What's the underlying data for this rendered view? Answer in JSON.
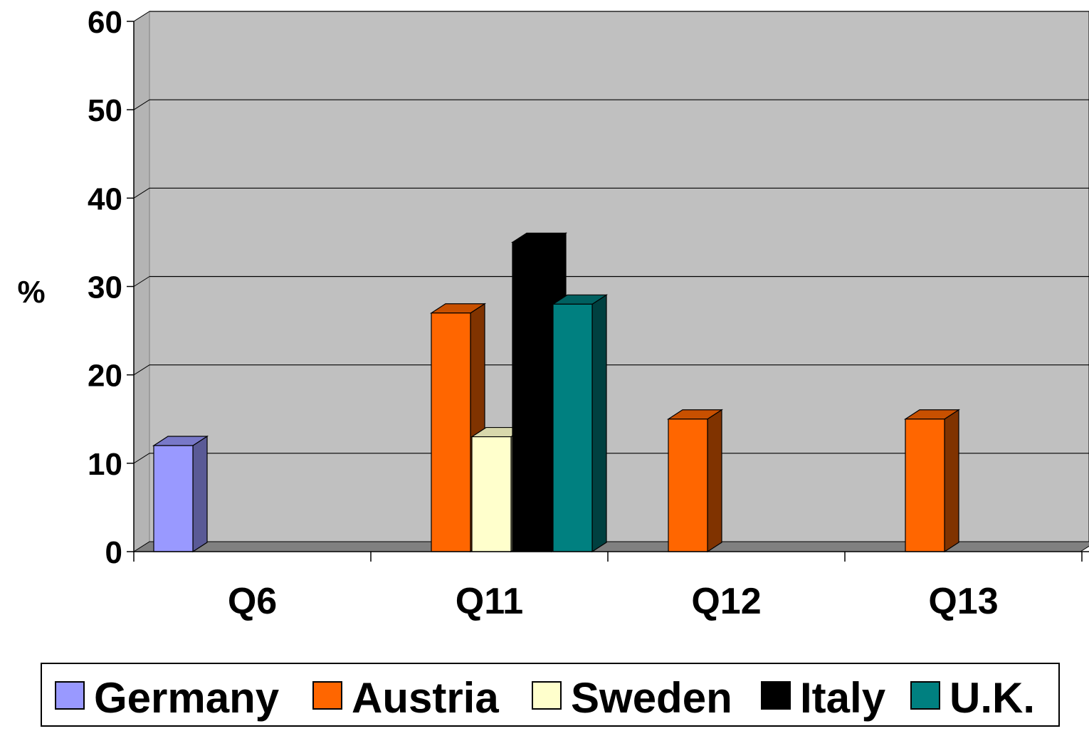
{
  "chart_data": {
    "type": "bar",
    "style": "3d-clustered-column",
    "categories": [
      "Q6",
      "Q11",
      "Q12",
      "Q13"
    ],
    "series": [
      {
        "name": "Germany",
        "values": [
          12,
          null,
          null,
          null
        ],
        "color": "#9999ff",
        "side_color": "#5a5a96",
        "top_color": "#7878c8"
      },
      {
        "name": "Austria",
        "values": [
          null,
          27,
          15,
          15
        ],
        "color": "#ff6600",
        "side_color": "#803300",
        "top_color": "#c85000"
      },
      {
        "name": "Sweden",
        "values": [
          null,
          13,
          null,
          null
        ],
        "color": "#ffffcc",
        "side_color": "#a0a080",
        "top_color": "#d8d8ac"
      },
      {
        "name": "Italy",
        "values": [
          null,
          35,
          null,
          null
        ],
        "color": "#000000",
        "side_color": "#000000",
        "top_color": "#000000"
      },
      {
        "name": "U.K.",
        "values": [
          null,
          28,
          null,
          null
        ],
        "color": "#008080",
        "side_color": "#004040",
        "top_color": "#006060"
      }
    ],
    "ylabel": "%",
    "ylim": [
      0,
      60
    ],
    "yticks": [
      0,
      10,
      20,
      30,
      40,
      50,
      60
    ],
    "grid": true,
    "legend_position": "bottom",
    "colors": {
      "plot_background": "#c0c0c0",
      "gridline": "#000000",
      "floor": "#808080"
    }
  }
}
